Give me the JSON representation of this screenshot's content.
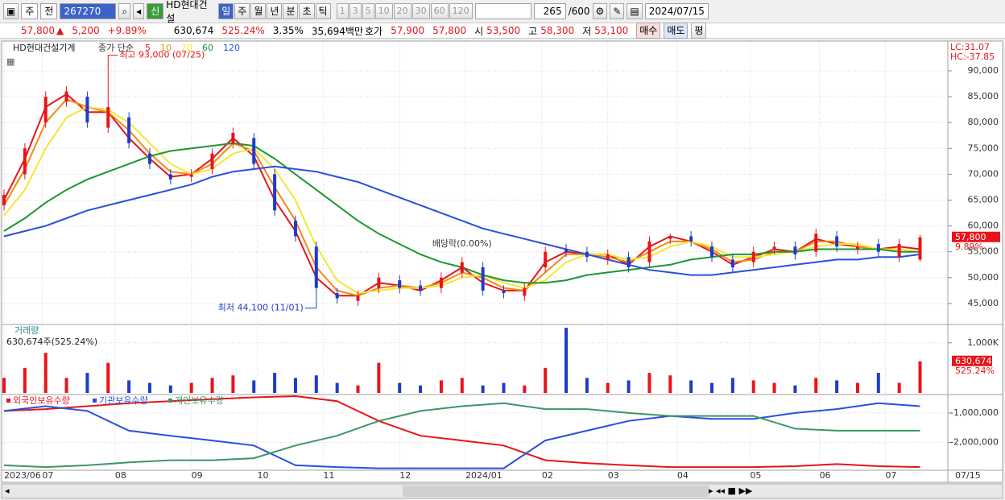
{
  "toolbar": {
    "market": "주",
    "mode": "전",
    "code": "267270",
    "badge": "신",
    "name": "HD현대건설",
    "periods": [
      "일",
      "주",
      "월",
      "년",
      "분",
      "초",
      "틱"
    ],
    "intervals": [
      "1",
      "3",
      "5",
      "10",
      "20",
      "30",
      "60",
      "120"
    ],
    "count": "265",
    "count_max": "/600",
    "date": "2024/07/15"
  },
  "quote": {
    "price": "57,800",
    "arrow": "▲",
    "change": "5,200",
    "change_rate": "+9.89%",
    "volume": "630,674",
    "volume_rate": "525.24%",
    "turnover": "3.35%",
    "amount": "35,694백만",
    "bid_label": "호가",
    "ask": "57,900",
    "bid": "57,800",
    "open_label": "시",
    "open": "53,500",
    "high_label": "고",
    "high": "58,300",
    "low_label": "저",
    "low": "53,100",
    "buy": "매수",
    "sell": "매도",
    "eval": "평"
  },
  "chart_data": [
    {
      "type": "candlestick",
      "title": "HD현대건설기계",
      "legend_label": "종가 단순",
      "up_color": "#e8141a",
      "down_color": "#1e3cc8",
      "x": [
        0,
        6,
        12,
        18,
        24,
        30,
        36,
        42,
        48,
        54,
        60,
        66,
        72,
        78,
        84,
        90,
        96,
        102,
        108,
        114,
        120,
        126,
        132,
        138,
        144,
        150,
        156,
        162,
        168,
        174,
        180,
        186,
        192,
        198,
        204,
        210,
        216,
        222,
        228,
        234,
        240,
        246,
        252,
        258,
        264
      ],
      "open": [
        64000,
        70000,
        80000,
        84000,
        85000,
        79000,
        81000,
        74000,
        70000,
        69500,
        71000,
        76000,
        77000,
        70000,
        61000,
        56000,
        47000,
        45500,
        48000,
        49500,
        48500,
        48000,
        51000,
        52000,
        47500,
        46500,
        52000,
        55500,
        55000,
        53500,
        54000,
        53000,
        57500,
        58000,
        56000,
        53500,
        53000,
        55500,
        56000,
        55000,
        58000,
        55500,
        56500,
        54000,
        53500
      ],
      "high": [
        67000,
        76000,
        86000,
        87000,
        86000,
        93000,
        82000,
        75000,
        71000,
        71000,
        75000,
        79000,
        78000,
        71000,
        62000,
        57000,
        48000,
        47500,
        51000,
        50500,
        49500,
        51000,
        54000,
        53000,
        48500,
        49000,
        56000,
        56500,
        56000,
        55500,
        55000,
        58000,
        58500,
        59000,
        57000,
        54500,
        56000,
        57000,
        57000,
        59500,
        59000,
        57000,
        57500,
        57500,
        58300
      ],
      "low": [
        63000,
        69000,
        79000,
        83000,
        79000,
        78000,
        75000,
        71000,
        68000,
        68500,
        70000,
        75000,
        71000,
        62000,
        57000,
        44100,
        45000,
        44500,
        47000,
        47000,
        46500,
        47000,
        50000,
        46500,
        46000,
        45500,
        51000,
        54000,
        53000,
        52500,
        51000,
        52000,
        56500,
        56000,
        53000,
        51000,
        52000,
        54500,
        53500,
        54000,
        55000,
        54500,
        54000,
        53000,
        53100
      ],
      "close": [
        66000,
        75000,
        85000,
        86000,
        80000,
        83000,
        76000,
        72000,
        69000,
        70000,
        74000,
        78000,
        72000,
        63000,
        58000,
        48000,
        46000,
        46500,
        50000,
        48000,
        47500,
        50000,
        53000,
        47500,
        47000,
        48000,
        55000,
        55000,
        54000,
        54500,
        52000,
        57000,
        58000,
        57000,
        54000,
        52000,
        55000,
        56000,
        54500,
        58500,
        56000,
        56000,
        55000,
        56500,
        57800
      ],
      "series": [
        {
          "name": "5",
          "color": "#e8141a",
          "values": [
            65000,
            73000,
            83000,
            85500,
            82000,
            82000,
            77000,
            73000,
            69500,
            70000,
            73000,
            77000,
            73500,
            65000,
            59000,
            50000,
            46500,
            46500,
            49000,
            48500,
            47500,
            49500,
            52000,
            49000,
            47500,
            47500,
            53000,
            55000,
            54500,
            54500,
            52500,
            56000,
            58000,
            57000,
            55000,
            52500,
            54000,
            55500,
            55000,
            57500,
            56500,
            56000,
            55500,
            56000,
            55500
          ]
        },
        {
          "name": "10",
          "color": "#f08a14",
          "values": [
            64000,
            71000,
            80000,
            84500,
            83000,
            82000,
            78500,
            74000,
            70500,
            70000,
            72000,
            76000,
            74500,
            67500,
            61000,
            52000,
            47500,
            46500,
            48000,
            48500,
            48000,
            49000,
            51000,
            50000,
            48000,
            47500,
            51000,
            54500,
            54500,
            54000,
            53000,
            55000,
            57000,
            57000,
            55500,
            53000,
            53500,
            55000,
            55000,
            57000,
            57000,
            56000,
            55500,
            55500,
            55000
          ]
        },
        {
          "name": "20",
          "color": "#f5e632",
          "values": [
            62000,
            67000,
            75000,
            81000,
            83000,
            82500,
            80000,
            76000,
            72000,
            70000,
            71000,
            74000,
            75000,
            71000,
            65000,
            56000,
            49500,
            47000,
            47500,
            48000,
            48000,
            48500,
            50000,
            50500,
            49000,
            48000,
            49500,
            53000,
            54500,
            54500,
            53500,
            54000,
            56000,
            57000,
            56000,
            54000,
            54000,
            54500,
            55000,
            56000,
            56500,
            56500,
            55500,
            55500,
            55000
          ]
        },
        {
          "name": "60",
          "color": "#1e9632",
          "values": [
            59000,
            61500,
            64500,
            67000,
            69000,
            70500,
            72000,
            73500,
            74500,
            75000,
            75500,
            76000,
            75500,
            73000,
            70000,
            67000,
            64000,
            61000,
            58500,
            56500,
            54500,
            53000,
            52000,
            50500,
            49500,
            49000,
            49000,
            49500,
            50500,
            51000,
            51500,
            52000,
            52500,
            53500,
            54000,
            54500,
            54500,
            55000,
            55000,
            55500,
            55500,
            55500,
            55500,
            55000,
            55000
          ]
        },
        {
          "name": "120",
          "color": "#2850dc",
          "values": [
            58000,
            59000,
            60000,
            61500,
            63000,
            64000,
            65000,
            66000,
            67000,
            68000,
            69500,
            70500,
            71000,
            71500,
            71000,
            70500,
            69500,
            68500,
            67000,
            65500,
            64000,
            62500,
            61000,
            59500,
            58500,
            57500,
            56500,
            55500,
            54500,
            53500,
            52500,
            51500,
            51000,
            50500,
            50500,
            51000,
            51500,
            52000,
            52500,
            53000,
            53500,
            53500,
            54000,
            54000,
            54500
          ]
        }
      ],
      "xlim": [
        0,
        272
      ],
      "xticks": [
        {
          "value": 0,
          "label": "2023/06"
        },
        {
          "value": 11,
          "label": "07"
        },
        {
          "value": 32,
          "label": "08"
        },
        {
          "value": 54,
          "label": "09"
        },
        {
          "value": 73,
          "label": "10"
        },
        {
          "value": 92,
          "label": "11"
        },
        {
          "value": 114,
          "label": "12"
        },
        {
          "value": 133,
          "label": "2024/01"
        },
        {
          "value": 155,
          "label": "02"
        },
        {
          "value": 174,
          "label": "03"
        },
        {
          "value": 194,
          "label": "04"
        },
        {
          "value": 215,
          "label": "05"
        },
        {
          "value": 235,
          "label": "06"
        },
        {
          "value": 254,
          "label": "07"
        }
      ],
      "x_end_label": "07/15",
      "ylim": [
        41100,
        95600
      ],
      "yticks": [
        {
          "value": 45000,
          "label": "45,000"
        },
        {
          "value": 50000,
          "label": "50,000"
        },
        {
          "value": 55000,
          "label": "55,000"
        },
        {
          "value": 60000,
          "label": "60,000"
        },
        {
          "value": 65000,
          "label": "65,000"
        },
        {
          "value": 70000,
          "label": "70,000"
        },
        {
          "value": 75000,
          "label": "75,000"
        },
        {
          "value": 80000,
          "label": "80,000"
        },
        {
          "value": 85000,
          "label": "85,000"
        },
        {
          "value": 90000,
          "label": "90,000"
        }
      ],
      "grid": true,
      "annotations": [
        {
          "text": "최고 93,000 (07/25)",
          "x": 30,
          "y": 93000
        },
        {
          "text": "최저 44,100 (11/01)",
          "x": 90,
          "y": 44100
        },
        {
          "text": "배당락(0.00%)",
          "x": 132
        }
      ],
      "corner_labels": [
        "LC:31.07",
        "HC:-37.85"
      ],
      "last_price_label": "57,800",
      "last_change_label": "9.89%"
    },
    {
      "type": "bar",
      "title": "거래량",
      "subtitle": "630,674주(525.24%)",
      "values": [
        300000,
        500000,
        800000,
        300000,
        400000,
        600000,
        250000,
        200000,
        150000,
        200000,
        300000,
        350000,
        250000,
        400000,
        300000,
        350000,
        200000,
        150000,
        600000,
        200000,
        150000,
        250000,
        300000,
        150000,
        200000,
        150000,
        500000,
        1300000,
        300000,
        200000,
        250000,
        400000,
        350000,
        250000,
        200000,
        300000,
        250000,
        200000,
        150000,
        300000,
        250000,
        200000,
        400000,
        200000,
        630674
      ],
      "ylim": [
        0,
        1350000
      ],
      "yticks": [
        {
          "value": 1000000,
          "label": "1,000K"
        }
      ],
      "last_value_label": "630,674",
      "last_change_label": "525.24%"
    },
    {
      "type": "line",
      "x": [
        0,
        12,
        24,
        36,
        48,
        60,
        72,
        84,
        96,
        108,
        120,
        132,
        144,
        156,
        168,
        180,
        192,
        204,
        216,
        228,
        240,
        252,
        264
      ],
      "series": [
        {
          "name": "외국인보유수량",
          "color": "#e8141a",
          "values": [
            -930000,
            -870000,
            -770000,
            -670000,
            -600000,
            -530000,
            -470000,
            -430000,
            -600000,
            -1270000,
            -1770000,
            -1930000,
            -2100000,
            -2600000,
            -2700000,
            -2770000,
            -2830000,
            -2830000,
            -2830000,
            -2800000,
            -2730000,
            -2800000,
            -2830000
          ]
        },
        {
          "name": "기관보유수량",
          "color": "#2850dc",
          "values": [
            -930000,
            -770000,
            -930000,
            -1600000,
            -1770000,
            -1930000,
            -2100000,
            -2770000,
            -2830000,
            -2870000,
            -2870000,
            -2870000,
            -2870000,
            -1930000,
            -1600000,
            -1270000,
            -1100000,
            -1200000,
            -1200000,
            -1000000,
            -870000,
            -670000,
            -770000
          ]
        },
        {
          "name": "개인보유수량",
          "color": "#3c9664",
          "values": [
            -2770000,
            -2830000,
            -2770000,
            -2670000,
            -2600000,
            -2600000,
            -2530000,
            -2100000,
            -1770000,
            -1270000,
            -930000,
            -770000,
            -670000,
            -870000,
            -870000,
            -1000000,
            -1100000,
            -1100000,
            -1100000,
            -1530000,
            -1600000,
            -1600000,
            -1600000
          ]
        }
      ],
      "ylim": [
        -3100000,
        -430000
      ],
      "yticks": [
        {
          "value": -1000000,
          "label": "-1,000,000"
        },
        {
          "value": -2000000,
          "label": "-2,000,000"
        }
      ]
    }
  ]
}
